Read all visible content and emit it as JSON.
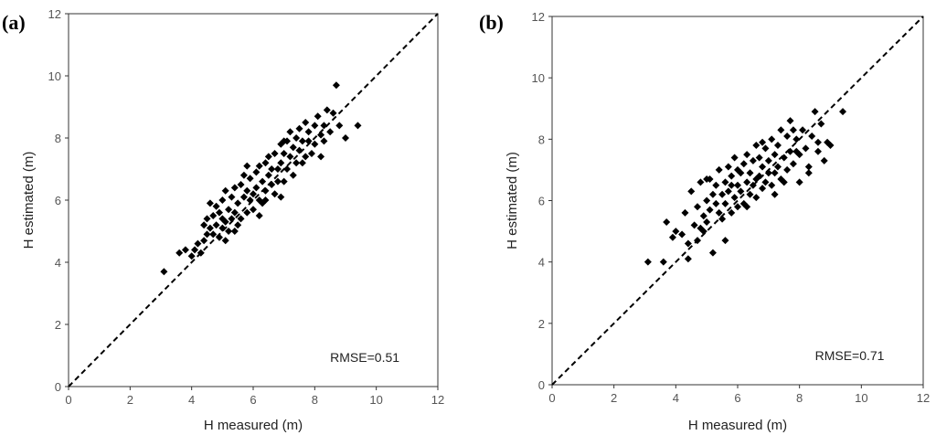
{
  "chart_data": [
    {
      "type": "scatter",
      "panel_label": "(a)",
      "xlabel": "H measured (m)",
      "ylabel": "H estimated (m)",
      "xlim": [
        0,
        12
      ],
      "ylim": [
        0,
        12
      ],
      "xticks": [
        "0",
        "2",
        "4",
        "6",
        "8",
        "10",
        "12"
      ],
      "yticks": [
        "0",
        "2",
        "4",
        "6",
        "8",
        "10",
        "12"
      ],
      "annotation": "RMSE=0.51",
      "reference_line": "1:1 dashed",
      "points": [
        [
          3.1,
          3.7
        ],
        [
          3.6,
          4.3
        ],
        [
          3.8,
          4.4
        ],
        [
          4.0,
          4.2
        ],
        [
          4.1,
          4.4
        ],
        [
          4.2,
          4.6
        ],
        [
          4.3,
          4.3
        ],
        [
          4.4,
          4.7
        ],
        [
          4.4,
          5.2
        ],
        [
          4.5,
          5.4
        ],
        [
          4.5,
          4.9
        ],
        [
          4.6,
          5.1
        ],
        [
          4.7,
          5.5
        ],
        [
          4.7,
          4.9
        ],
        [
          4.8,
          5.8
        ],
        [
          4.8,
          5.2
        ],
        [
          4.9,
          4.8
        ],
        [
          4.9,
          5.6
        ],
        [
          5.0,
          5.1
        ],
        [
          5.0,
          6.0
        ],
        [
          5.0,
          5.4
        ],
        [
          5.1,
          5.3
        ],
        [
          5.1,
          6.3
        ],
        [
          5.2,
          5.0
        ],
        [
          5.2,
          5.7
        ],
        [
          5.3,
          5.4
        ],
        [
          5.3,
          6.1
        ],
        [
          5.4,
          5.6
        ],
        [
          5.4,
          6.4
        ],
        [
          5.5,
          5.2
        ],
        [
          5.5,
          5.9
        ],
        [
          5.6,
          6.5
        ],
        [
          5.6,
          5.4
        ],
        [
          5.7,
          6.1
        ],
        [
          5.7,
          6.8
        ],
        [
          5.8,
          5.6
        ],
        [
          5.8,
          6.3
        ],
        [
          5.9,
          6.0
        ],
        [
          5.9,
          6.7
        ],
        [
          6.0,
          6.2
        ],
        [
          6.0,
          5.7
        ],
        [
          6.1,
          6.9
        ],
        [
          6.1,
          6.4
        ],
        [
          6.2,
          6.0
        ],
        [
          6.2,
          7.1
        ],
        [
          6.3,
          6.6
        ],
        [
          6.3,
          5.9
        ],
        [
          6.4,
          7.2
        ],
        [
          6.4,
          6.3
        ],
        [
          6.5,
          6.8
        ],
        [
          6.5,
          7.4
        ],
        [
          6.6,
          6.5
        ],
        [
          6.6,
          7.0
        ],
        [
          6.7,
          6.2
        ],
        [
          6.7,
          7.5
        ],
        [
          6.8,
          7.0
        ],
        [
          6.8,
          6.6
        ],
        [
          6.9,
          7.8
        ],
        [
          6.9,
          7.2
        ],
        [
          7.0,
          6.6
        ],
        [
          7.0,
          7.5
        ],
        [
          7.1,
          7.9
        ],
        [
          7.1,
          7.0
        ],
        [
          7.2,
          8.2
        ],
        [
          7.2,
          7.4
        ],
        [
          7.3,
          6.8
        ],
        [
          7.3,
          7.7
        ],
        [
          7.4,
          8.0
        ],
        [
          7.4,
          7.2
        ],
        [
          7.5,
          8.3
        ],
        [
          7.5,
          7.6
        ],
        [
          7.6,
          7.9
        ],
        [
          7.7,
          7.4
        ],
        [
          7.7,
          8.5
        ],
        [
          7.8,
          7.9
        ],
        [
          7.8,
          8.2
        ],
        [
          7.9,
          7.5
        ],
        [
          8.0,
          8.4
        ],
        [
          8.0,
          7.8
        ],
        [
          8.1,
          8.7
        ],
        [
          8.2,
          8.1
        ],
        [
          8.2,
          7.4
        ],
        [
          8.3,
          8.4
        ],
        [
          8.4,
          8.9
        ],
        [
          8.5,
          8.2
        ],
        [
          8.6,
          8.8
        ],
        [
          8.7,
          9.7
        ],
        [
          8.8,
          8.4
        ],
        [
          9.0,
          8.0
        ],
        [
          9.4,
          8.4
        ],
        [
          4.6,
          5.9
        ],
        [
          5.1,
          4.7
        ],
        [
          5.8,
          7.1
        ],
        [
          6.4,
          6.0
        ],
        [
          6.9,
          6.1
        ],
        [
          7.6,
          7.2
        ],
        [
          8.3,
          7.9
        ],
        [
          5.4,
          5.0
        ],
        [
          6.2,
          5.5
        ],
        [
          7.0,
          7.9
        ]
      ]
    },
    {
      "type": "scatter",
      "panel_label": "(b)",
      "xlabel": "H measured (m)",
      "ylabel": "H estimated (m)",
      "xlim": [
        0,
        12
      ],
      "ylim": [
        0,
        12
      ],
      "xticks": [
        "0",
        "2",
        "4",
        "6",
        "8",
        "10",
        "12"
      ],
      "yticks": [
        "0",
        "2",
        "4",
        "6",
        "8",
        "10",
        "12"
      ],
      "annotation": "RMSE=0.71",
      "reference_line": "1:1 dashed",
      "points": [
        [
          3.1,
          4.0
        ],
        [
          3.6,
          4.0
        ],
        [
          3.7,
          5.3
        ],
        [
          3.9,
          4.8
        ],
        [
          4.0,
          5.0
        ],
        [
          4.2,
          4.9
        ],
        [
          4.3,
          5.6
        ],
        [
          4.4,
          4.1
        ],
        [
          4.5,
          6.3
        ],
        [
          4.6,
          5.2
        ],
        [
          4.7,
          4.7
        ],
        [
          4.7,
          5.8
        ],
        [
          4.8,
          5.1
        ],
        [
          4.8,
          6.6
        ],
        [
          4.9,
          5.5
        ],
        [
          5.0,
          6.0
        ],
        [
          5.0,
          5.3
        ],
        [
          5.1,
          6.7
        ],
        [
          5.1,
          5.7
        ],
        [
          5.2,
          6.2
        ],
        [
          5.2,
          4.3
        ],
        [
          5.3,
          5.9
        ],
        [
          5.3,
          6.5
        ],
        [
          5.4,
          5.6
        ],
        [
          5.4,
          7.0
        ],
        [
          5.5,
          6.2
        ],
        [
          5.5,
          5.4
        ],
        [
          5.6,
          6.6
        ],
        [
          5.6,
          5.9
        ],
        [
          5.7,
          7.1
        ],
        [
          5.7,
          6.3
        ],
        [
          5.8,
          5.6
        ],
        [
          5.8,
          6.8
        ],
        [
          5.9,
          6.1
        ],
        [
          5.9,
          7.4
        ],
        [
          6.0,
          6.5
        ],
        [
          6.0,
          5.8
        ],
        [
          6.1,
          6.9
        ],
        [
          6.1,
          6.3
        ],
        [
          6.2,
          7.2
        ],
        [
          6.2,
          5.9
        ],
        [
          6.3,
          6.6
        ],
        [
          6.3,
          7.5
        ],
        [
          6.4,
          6.2
        ],
        [
          6.4,
          6.9
        ],
        [
          6.5,
          7.3
        ],
        [
          6.5,
          6.5
        ],
        [
          6.6,
          7.8
        ],
        [
          6.6,
          6.1
        ],
        [
          6.7,
          6.8
        ],
        [
          6.7,
          7.4
        ],
        [
          6.8,
          6.4
        ],
        [
          6.8,
          7.1
        ],
        [
          6.9,
          7.7
        ],
        [
          6.9,
          6.6
        ],
        [
          7.0,
          7.3
        ],
        [
          7.0,
          6.9
        ],
        [
          7.1,
          8.0
        ],
        [
          7.1,
          6.5
        ],
        [
          7.2,
          7.5
        ],
        [
          7.2,
          6.9
        ],
        [
          7.3,
          7.8
        ],
        [
          7.3,
          7.1
        ],
        [
          7.4,
          8.3
        ],
        [
          7.4,
          6.7
        ],
        [
          7.5,
          7.4
        ],
        [
          7.6,
          8.1
        ],
        [
          7.6,
          7.0
        ],
        [
          7.7,
          8.6
        ],
        [
          7.7,
          7.6
        ],
        [
          7.8,
          7.2
        ],
        [
          7.9,
          8.0
        ],
        [
          8.0,
          7.5
        ],
        [
          8.0,
          6.6
        ],
        [
          8.1,
          8.3
        ],
        [
          8.2,
          7.7
        ],
        [
          8.3,
          7.1
        ],
        [
          8.4,
          8.1
        ],
        [
          8.5,
          8.9
        ],
        [
          8.6,
          7.6
        ],
        [
          8.7,
          8.5
        ],
        [
          8.8,
          7.3
        ],
        [
          8.9,
          7.9
        ],
        [
          9.0,
          7.8
        ],
        [
          9.4,
          8.9
        ],
        [
          4.4,
          4.6
        ],
        [
          5.6,
          4.7
        ],
        [
          6.3,
          5.8
        ],
        [
          7.2,
          6.2
        ],
        [
          7.9,
          7.6
        ],
        [
          8.3,
          6.9
        ],
        [
          5.0,
          6.7
        ],
        [
          6.0,
          7.0
        ],
        [
          6.8,
          7.9
        ],
        [
          7.5,
          6.6
        ],
        [
          4.9,
          5.0
        ],
        [
          5.8,
          6.5
        ],
        [
          6.6,
          6.7
        ],
        [
          7.8,
          8.3
        ],
        [
          8.6,
          7.9
        ]
      ]
    }
  ]
}
